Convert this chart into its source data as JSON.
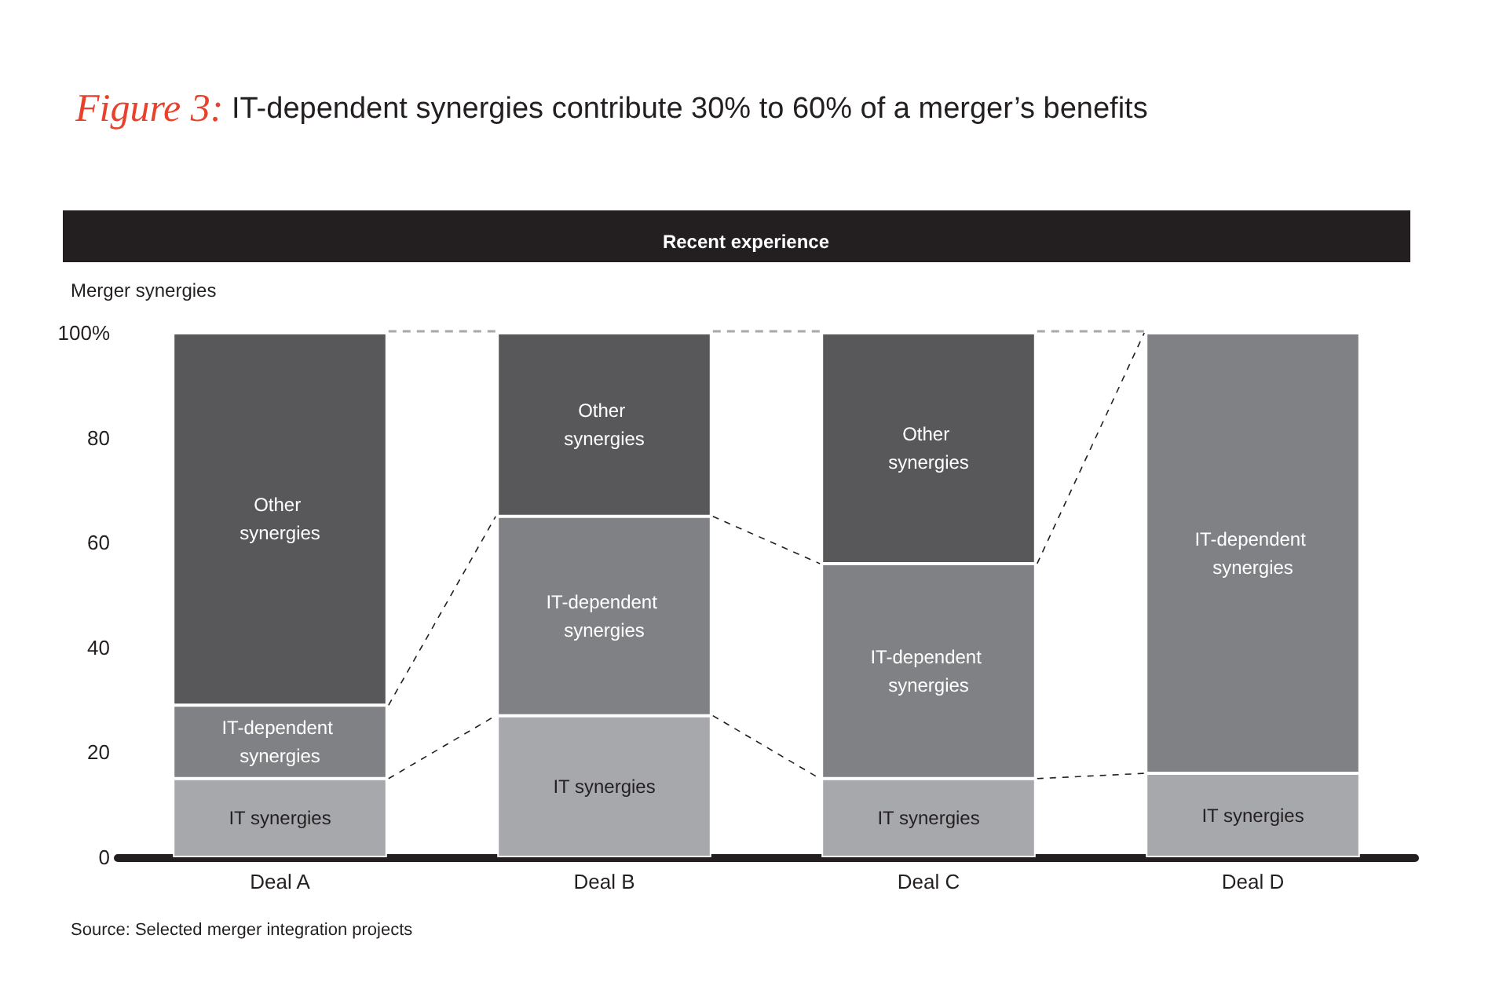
{
  "chart_data": {
    "type": "bar",
    "title": "Figure 3: IT-dependent synergies contribute 30% to 60% of a merger’s benefits",
    "subtitle": "Recent experience",
    "ylabel": "Merger synergies",
    "annotations": [
      "Source: Selected merger integration projects"
    ],
    "categories": [
      "Deal A",
      "Deal B",
      "Deal C",
      "Deal D"
    ],
    "stacked": true,
    "series": [
      {
        "name": "IT synergies",
        "color": "#a7a8ab",
        "values": [
          15,
          27,
          15,
          16
        ]
      },
      {
        "name": "IT-dependent synergies",
        "color": "#808184",
        "values": [
          14,
          38,
          41,
          84
        ]
      },
      {
        "name": "Other synergies",
        "color": "#58585a",
        "values": [
          71,
          35,
          44,
          null
        ]
      }
    ],
    "ylim": [
      0,
      100
    ],
    "yticks": [
      0,
      20,
      40,
      60,
      80,
      {
        "value": 100,
        "label": "100%"
      }
    ],
    "grid": false
  }
}
